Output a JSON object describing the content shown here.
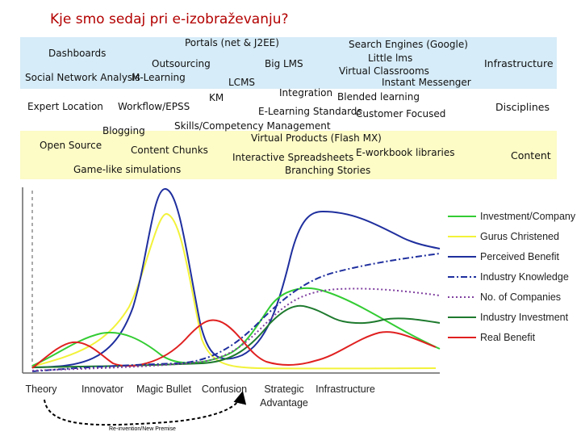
{
  "title": "Kje smo sedaj pri e-izobraževanju?",
  "categories": {
    "infrastructure": "Infrastructure",
    "disciplines": "Disciplines",
    "content": "Content"
  },
  "terms": {
    "portals": "Portals (net & J2EE)",
    "dashboards": "Dashboards",
    "outsourcing": "Outsourcing",
    "big_lms": "Big LMS",
    "search_engines": "Search Engines (Google)",
    "little_lms": "Little lms",
    "virtual_classrooms": "Virtual Classrooms",
    "social_network_analysis": "Social Network Analysis",
    "m_learning": "M-Learning",
    "lcms": "LCMS",
    "instant_messenger": "Instant Messenger",
    "integration": "Integration",
    "km": "KM",
    "blended_learning": "Blended learning",
    "expert_location": "Expert Location",
    "workflow_epss": "Workflow/EPSS",
    "elearning_standards": "E-Learning Standards",
    "customer_focused": "Customer Focused",
    "blogging": "Blogging",
    "skills_competency": "Skills/Competency Management",
    "virtual_products": "Virtual Products (Flash MX)",
    "open_source": "Open Source",
    "content_chunks": "Content Chunks",
    "interactive_spreadsheets": "Interactive Spreadsheets",
    "eworkbook_libraries": "E-workbook libraries",
    "game_like_simulations": "Game-like simulations",
    "branching_stories": "Branching Stories"
  },
  "chart": {
    "stages": [
      "Theory",
      "Innovator",
      "Magic Bullet",
      "Confusion",
      "Strategic\nAdvantage",
      "Infrastructure"
    ],
    "cycle_label": "Re-invention/New Premise",
    "legend": [
      {
        "label": "Investment/Company",
        "color": "#33cc33",
        "dash": "solid"
      },
      {
        "label": "Gurus Christened",
        "color": "#f2f23a",
        "dash": "solid"
      },
      {
        "label": "Perceived Benefit",
        "color": "#1f2f9e",
        "dash": "solid"
      },
      {
        "label": "Industry Knowledge",
        "color": "#1f2f9e",
        "dash": "dashdot"
      },
      {
        "label": "No. of Companies",
        "color": "#8040a0",
        "dash": "dotted"
      },
      {
        "label": "Industry Investment",
        "color": "#1e7a2e",
        "dash": "solid"
      },
      {
        "label": "Real Benefit",
        "color": "#e02020",
        "dash": "solid"
      }
    ]
  }
}
